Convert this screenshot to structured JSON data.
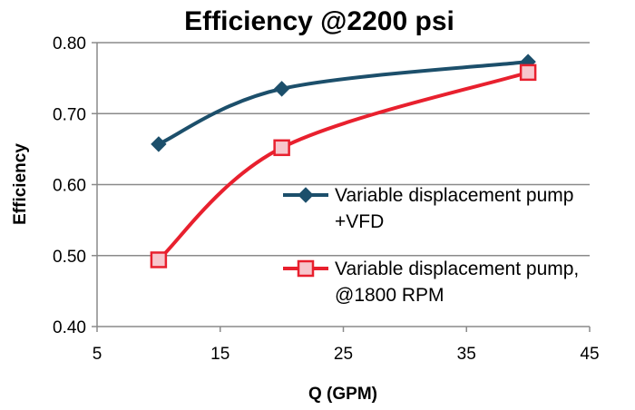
{
  "chart_data": {
    "type": "line",
    "title": "Efficiency @2200 psi",
    "xlabel": "Q (GPM)",
    "ylabel": "Efficiency",
    "xlim": [
      5,
      45
    ],
    "ylim": [
      0.4,
      0.8
    ],
    "xticks": [
      "5",
      "15",
      "25",
      "35",
      "45"
    ],
    "yticks": [
      "0.40",
      "0.50",
      "0.60",
      "0.70",
      "0.80"
    ],
    "grid": "horizontal",
    "smooth": true,
    "legend_position": "right",
    "series": [
      {
        "name": "Variable displacement pump +VFD",
        "name_lines": [
          "Variable displacement pump",
          "+VFD"
        ],
        "x": [
          10,
          20,
          40
        ],
        "y": [
          0.657,
          0.735,
          0.773
        ],
        "color": "#1c4f6b",
        "marker": "diamond"
      },
      {
        "name": "Variable displacement pump, @1800 RPM",
        "name_lines": [
          "Variable displacement pump,",
          "@1800 RPM"
        ],
        "x": [
          10,
          20,
          40
        ],
        "y": [
          0.494,
          0.652,
          0.758
        ],
        "color": "#e8202e",
        "marker": "square"
      }
    ]
  }
}
